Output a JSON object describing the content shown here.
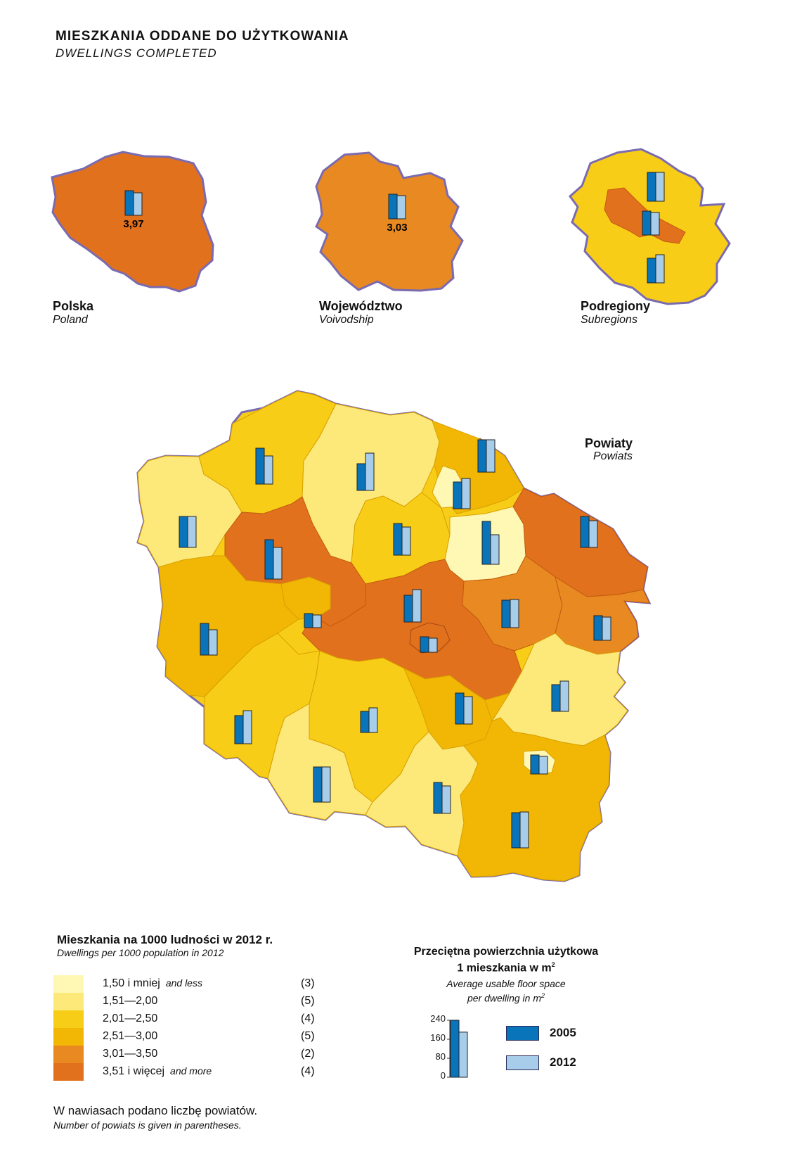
{
  "title": "MIESZKANIA  ODDANE  DO  UŻYTKOWANIA",
  "subtitle": "DWELLINGS  COMPLETED",
  "colors": {
    "c1": "#fff7b4",
    "c2": "#fde97a",
    "c3": "#f8cd17",
    "c4": "#f2b705",
    "c5": "#e88a21",
    "c6": "#e2711d",
    "border": "#7a6bb0",
    "bar2005": "#0a74ba",
    "bar2012": "#a8cdea"
  },
  "mini_maps": [
    {
      "title": "Polska",
      "subtitle": "Poland",
      "value_label": "3,97",
      "fill": "#e2711d"
    },
    {
      "title": "Województwo",
      "subtitle": "Voivodship",
      "value_label": "3,03",
      "fill": "#e88a21"
    },
    {
      "title": "Podregiony",
      "subtitle": "Subregions",
      "value_label": "",
      "fill": "#f8cd17"
    }
  ],
  "main_map": {
    "title": "Powiaty",
    "subtitle": "Powiats"
  },
  "legend": {
    "title": "Mieszkania na 1000 ludności w 2012 r.",
    "subtitle": "Dwellings per 1000 population in 2012",
    "classes": [
      {
        "label": "1,50 i mniej",
        "note": "and less",
        "count": "(3)",
        "color": "#fff7b4"
      },
      {
        "label": "1,51—2,00",
        "note": "",
        "count": "(5)",
        "color": "#fde97a"
      },
      {
        "label": "2,01—2,50",
        "note": "",
        "count": "(4)",
        "color": "#f8cd17"
      },
      {
        "label": "2,51—3,00",
        "note": "",
        "count": "(5)",
        "color": "#f2b705"
      },
      {
        "label": "3,01—3,50",
        "note": "",
        "count": "(2)",
        "color": "#e88a21"
      },
      {
        "label": "3,51 i więcej",
        "note": "and more",
        "count": "(4)",
        "color": "#e2711d"
      }
    ]
  },
  "bar_legend": {
    "title_line1": "Przeciętna powierzchnia użytkowa",
    "title_line2": "1 mieszkania w m",
    "title_sup": "2",
    "subtitle_line1": "Average usable floor space",
    "subtitle_line2": "per dwelling in m",
    "subtitle_sup": "2",
    "ticks": [
      "240",
      "160",
      "80",
      "0"
    ],
    "sample_values": {
      "2005": 240,
      "2012": 190
    },
    "key_2005": "2005",
    "key_2012": "2012"
  },
  "footnote": {
    "line1": "W nawiasach podano liczbę powiatów.",
    "line2": "Number of powiats is given in parentheses."
  }
}
